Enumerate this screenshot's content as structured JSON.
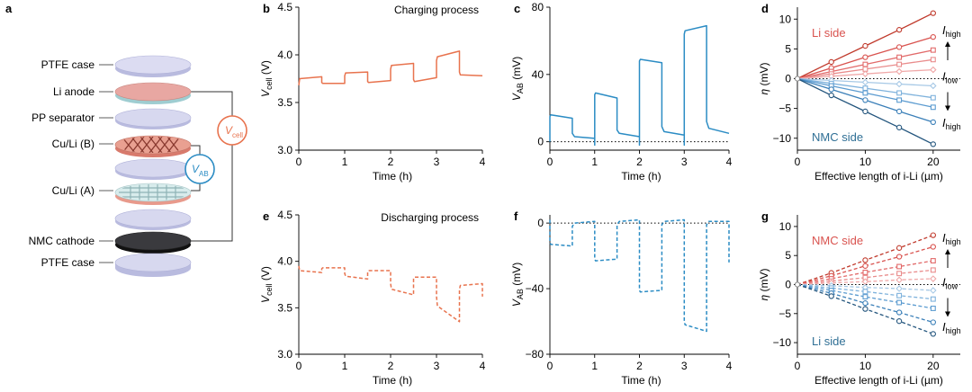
{
  "colors": {
    "orange": "#e8734e",
    "blue": "#2b8cc4",
    "red_side": "#d9534f",
    "blue_side": "#2f6f95",
    "disk": "#cfd0ec",
    "disk_edge": "#9c9fcc",
    "pink": "#e7a7a0",
    "dark": "#2a2a2a",
    "vcell_ring": "#e8734e",
    "vab_ring": "#2b8cc4"
  },
  "panel_a": {
    "label": "a",
    "layers": [
      "PTFE case",
      "Li anode",
      "PP separator",
      "Cu/Li (B)",
      "Cu/Li (A)",
      "NMC cathode",
      "PTFE case"
    ],
    "vcell_symbol": "V",
    "vcell_sub": "cell",
    "vab_symbol": "V",
    "vab_sub": "AB"
  },
  "chart_data": [
    {
      "id": "b",
      "type": "line",
      "label": "b",
      "title": "Charging process",
      "xlabel": "Time (h)",
      "ylabel_main": "V",
      "ylabel_sub": "cell",
      "ylabel_unit": " (V)",
      "xlim": [
        0,
        4
      ],
      "ylim": [
        3.0,
        4.5
      ],
      "xticks": [
        0,
        1,
        2,
        3,
        4
      ],
      "yticks": [
        3.0,
        3.5,
        4.0,
        4.5
      ],
      "ytick_labels": [
        "3.0",
        "3.5",
        "4.0",
        "4.5"
      ],
      "series": [
        {
          "name": "Vcell charge",
          "color": "orange",
          "dash": false,
          "x": [
            0,
            0.02,
            0.5,
            0.5,
            0.52,
            1.0,
            1.0,
            1.02,
            1.5,
            1.5,
            1.52,
            2.0,
            2.0,
            2.02,
            2.5,
            2.5,
            2.52,
            3.0,
            3.0,
            3.02,
            3.5,
            3.5,
            3.52,
            4.0
          ],
          "y": [
            3.68,
            3.75,
            3.77,
            3.71,
            3.7,
            3.7,
            3.78,
            3.81,
            3.82,
            3.72,
            3.71,
            3.73,
            3.85,
            3.89,
            3.91,
            3.74,
            3.72,
            3.76,
            3.94,
            3.98,
            4.04,
            3.82,
            3.79,
            3.78
          ]
        }
      ]
    },
    {
      "id": "c",
      "type": "line",
      "label": "c",
      "title": "",
      "xlabel": "Time (h)",
      "ylabel_main": "V",
      "ylabel_sub": "AB",
      "ylabel_unit": " (mV)",
      "xlim": [
        0,
        4
      ],
      "ylim": [
        -5,
        80
      ],
      "xticks": [
        0,
        1,
        2,
        3,
        4
      ],
      "yticks": [
        0,
        40,
        80
      ],
      "ytick_labels": [
        "0",
        "40",
        "80"
      ],
      "zero_line": true,
      "series": [
        {
          "name": "VAB charge",
          "color": "blue",
          "dash": false,
          "x": [
            0,
            0.0,
            0.02,
            0.5,
            0.5,
            0.55,
            1.0,
            1.0,
            1.0,
            1.02,
            1.5,
            1.5,
            1.55,
            2.0,
            2.0,
            2.0,
            2.02,
            2.5,
            2.5,
            2.55,
            3.0,
            3.0,
            3.0,
            3.02,
            3.5,
            3.5,
            3.55,
            4.0
          ],
          "y": [
            0,
            15,
            16,
            14,
            5,
            3,
            2,
            -2,
            28,
            29,
            26,
            7,
            5,
            3,
            -2,
            48,
            49,
            47,
            9,
            6,
            4,
            -2,
            64,
            66,
            69,
            12,
            8,
            5
          ]
        }
      ]
    },
    {
      "id": "d",
      "type": "line",
      "label": "d",
      "title": "",
      "xlabel": "Effective length of i-Li (µm)",
      "ylabel_main": "η",
      "ylabel_sub": "",
      "ylabel_unit": " (mV)",
      "xlim": [
        0,
        24
      ],
      "ylim": [
        -12,
        12
      ],
      "xticks": [
        0,
        10,
        20
      ],
      "yticks": [
        -10,
        -5,
        0,
        5,
        10
      ],
      "ytick_labels": [
        "−10",
        "−5",
        "0",
        "5",
        "10"
      ],
      "zero_line": true,
      "side_top": "Li side",
      "side_bottom": "NMC side",
      "ihigh": "I",
      "ihigh_sub": "high",
      "ilow": "I",
      "ilow_sub": "low",
      "x": [
        0,
        5,
        10,
        15,
        20
      ],
      "series": [
        {
          "name": "s1",
          "color": "#c0392b",
          "marker": "circle",
          "dash": false,
          "y": [
            0,
            2.8,
            5.5,
            8.2,
            11.0
          ]
        },
        {
          "name": "s2",
          "color": "#d9534f",
          "marker": "circle",
          "dash": false,
          "y": [
            0,
            1.8,
            3.6,
            5.3,
            7.0
          ]
        },
        {
          "name": "s3",
          "color": "#e26a6a",
          "marker": "square",
          "dash": false,
          "y": [
            0,
            1.2,
            2.4,
            3.6,
            4.8
          ]
        },
        {
          "name": "s4",
          "color": "#e98c8c",
          "marker": "square",
          "dash": false,
          "y": [
            0,
            0.8,
            1.6,
            2.4,
            3.2
          ]
        },
        {
          "name": "s5",
          "color": "#f0a9a9",
          "marker": "diamond",
          "dash": false,
          "y": [
            0,
            0.4,
            0.8,
            1.2,
            1.5
          ]
        },
        {
          "name": "s6",
          "color": "#a7c9e6",
          "marker": "diamond",
          "dash": false,
          "y": [
            0,
            -0.3,
            -0.6,
            -0.9,
            -1.2
          ]
        },
        {
          "name": "s7",
          "color": "#7fb2dc",
          "marker": "square",
          "dash": false,
          "y": [
            0,
            -0.8,
            -1.6,
            -2.4,
            -3.2
          ]
        },
        {
          "name": "s8",
          "color": "#5b9bd0",
          "marker": "square",
          "dash": false,
          "y": [
            0,
            -1.2,
            -2.4,
            -3.6,
            -4.8
          ]
        },
        {
          "name": "s9",
          "color": "#3a7fb8",
          "marker": "circle",
          "dash": false,
          "y": [
            0,
            -1.8,
            -3.6,
            -5.5,
            -7.3
          ]
        },
        {
          "name": "s10",
          "color": "#23557d",
          "marker": "circle",
          "dash": false,
          "y": [
            0,
            -2.8,
            -5.5,
            -8.2,
            -11.0
          ]
        }
      ]
    },
    {
      "id": "e",
      "type": "line",
      "label": "e",
      "title": "Discharging process",
      "xlabel": "Time (h)",
      "ylabel_main": "V",
      "ylabel_sub": "cell",
      "ylabel_unit": " (V)",
      "xlim": [
        0,
        4
      ],
      "ylim": [
        3.0,
        4.5
      ],
      "xticks": [
        0,
        1,
        2,
        3,
        4
      ],
      "yticks": [
        3.0,
        3.5,
        4.0,
        4.5
      ],
      "ytick_labels": [
        "3.0",
        "3.5",
        "4.0",
        "4.5"
      ],
      "series": [
        {
          "name": "Vcell discharge",
          "color": "orange",
          "dash": true,
          "x": [
            0,
            0.02,
            0.5,
            0.5,
            0.52,
            1.0,
            1.0,
            1.02,
            1.5,
            1.5,
            1.52,
            2.0,
            2.0,
            2.02,
            2.5,
            2.5,
            2.52,
            3.0,
            3.0,
            3.02,
            3.5,
            3.5,
            3.52,
            4.0,
            4.0
          ],
          "y": [
            3.95,
            3.9,
            3.88,
            3.92,
            3.93,
            3.93,
            3.87,
            3.84,
            3.81,
            3.89,
            3.9,
            3.9,
            3.76,
            3.7,
            3.64,
            3.82,
            3.83,
            3.83,
            3.62,
            3.52,
            3.35,
            3.7,
            3.74,
            3.76,
            3.62
          ]
        }
      ]
    },
    {
      "id": "f",
      "type": "line",
      "label": "f",
      "title": "",
      "xlabel": "Time (h)",
      "ylabel_main": "V",
      "ylabel_sub": "AB",
      "ylabel_unit": " (mV)",
      "xlim": [
        0,
        4
      ],
      "ylim": [
        -80,
        5
      ],
      "xticks": [
        0,
        1,
        2,
        3,
        4
      ],
      "yticks": [
        0,
        -40,
        -80
      ],
      "ytick_labels": [
        "0",
        "−40",
        "−80"
      ],
      "zero_line": true,
      "series": [
        {
          "name": "VAB discharge",
          "color": "blue",
          "dash": true,
          "x": [
            0,
            0.0,
            0.02,
            0.5,
            0.5,
            0.55,
            1.0,
            1.0,
            1.02,
            1.5,
            1.5,
            1.55,
            2.0,
            2.0,
            2.02,
            2.5,
            2.5,
            2.55,
            3.0,
            3.0,
            3.02,
            3.5,
            3.5,
            3.55,
            4.0,
            4.0
          ],
          "y": [
            2,
            -12,
            -13,
            -14,
            -2,
            0,
            1,
            -22,
            -23,
            -22,
            -1,
            1,
            2,
            -41,
            -42,
            -41,
            -1,
            1,
            2,
            -60,
            -62,
            -66,
            -1,
            1,
            1,
            -24
          ]
        }
      ]
    },
    {
      "id": "g",
      "type": "line",
      "label": "g",
      "title": "",
      "xlabel": "Effective length of i-Li (µm)",
      "ylabel_main": "η",
      "ylabel_sub": "",
      "ylabel_unit": " (mV)",
      "xlim": [
        0,
        24
      ],
      "ylim": [
        -12,
        12
      ],
      "xticks": [
        0,
        10,
        20
      ],
      "yticks": [
        -10,
        -5,
        0,
        5,
        10
      ],
      "ytick_labels": [
        "−10",
        "−5",
        "0",
        "5",
        "10"
      ],
      "zero_line": true,
      "side_top": "NMC side",
      "side_bottom": "Li side",
      "ihigh": "I",
      "ihigh_sub": "high",
      "ilow": "I",
      "ilow_sub": "low",
      "x": [
        0,
        5,
        10,
        15,
        20
      ],
      "series": [
        {
          "name": "s1",
          "color": "#c0392b",
          "marker": "circle",
          "dash": true,
          "y": [
            0,
            2.0,
            4.2,
            6.3,
            8.5
          ]
        },
        {
          "name": "s2",
          "color": "#d9534f",
          "marker": "circle",
          "dash": true,
          "y": [
            0,
            1.5,
            3.2,
            4.8,
            6.5
          ]
        },
        {
          "name": "s3",
          "color": "#e26a6a",
          "marker": "square",
          "dash": true,
          "y": [
            0,
            1.0,
            2.1,
            3.1,
            4.1
          ]
        },
        {
          "name": "s4",
          "color": "#e98c8c",
          "marker": "square",
          "dash": true,
          "y": [
            0,
            0.6,
            1.2,
            1.9,
            2.5
          ]
        },
        {
          "name": "s5",
          "color": "#f0a9a9",
          "marker": "diamond",
          "dash": true,
          "y": [
            0,
            0.3,
            0.5,
            0.8,
            1.0
          ]
        },
        {
          "name": "s6",
          "color": "#a7c9e6",
          "marker": "diamond",
          "dash": true,
          "y": [
            0,
            -0.2,
            -0.5,
            -0.7,
            -1.0
          ]
        },
        {
          "name": "s7",
          "color": "#7fb2dc",
          "marker": "square",
          "dash": true,
          "y": [
            0,
            -0.6,
            -1.2,
            -1.9,
            -2.5
          ]
        },
        {
          "name": "s8",
          "color": "#5b9bd0",
          "marker": "square",
          "dash": true,
          "y": [
            0,
            -1.0,
            -2.1,
            -3.1,
            -4.1
          ]
        },
        {
          "name": "s9",
          "color": "#3a7fb8",
          "marker": "circle",
          "dash": true,
          "y": [
            0,
            -1.5,
            -3.2,
            -4.8,
            -6.5
          ]
        },
        {
          "name": "s10",
          "color": "#23557d",
          "marker": "circle",
          "dash": true,
          "y": [
            0,
            -2.0,
            -4.2,
            -6.3,
            -8.5
          ]
        }
      ]
    }
  ]
}
